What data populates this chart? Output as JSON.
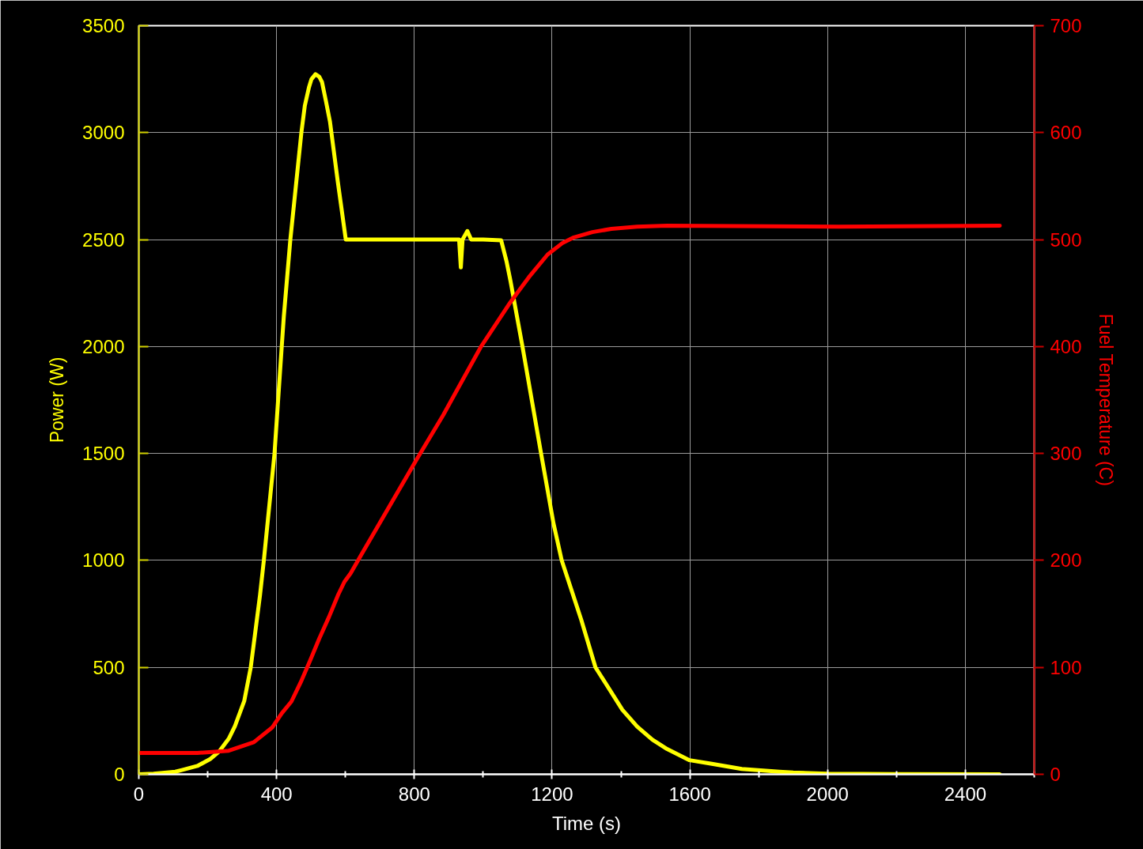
{
  "chart_data": {
    "type": "line",
    "xlabel": "Time (s)",
    "ylabel": "Power (W)",
    "y2label": "Fuel Temperature (C)",
    "xlim": [
      0,
      2600
    ],
    "xticks": [
      0,
      {
        "value": 200,
        "label": null
      },
      400,
      {
        "value": 600,
        "label": null
      },
      800,
      {
        "value": 1000,
        "label": null
      },
      1200,
      {
        "value": 1400,
        "label": null
      },
      1600,
      {
        "value": 1800,
        "label": null
      },
      2000,
      {
        "value": 2200,
        "label": null
      },
      2400,
      {
        "value": 2600,
        "label": null
      }
    ],
    "ylim": [
      0,
      3500
    ],
    "yticks": [
      0,
      500,
      1000,
      1500,
      2000,
      2500,
      3000,
      3500
    ],
    "y2lim": [
      0,
      700
    ],
    "y2ticks": [
      0,
      100,
      200,
      300,
      400,
      500,
      600,
      700
    ],
    "grid": true,
    "series": [
      {
        "color": "#ffff00",
        "x": [
          0,
          43,
          106,
          125,
          170,
          207,
          234,
          261,
          279,
          306,
          325,
          338,
          352,
          363,
          394,
          415,
          421,
          440,
          472,
          482,
          494,
          501,
          513,
          524,
          532,
          543,
          555,
          578,
          601,
          700,
          800,
          900,
          930,
          935,
          940,
          954,
          965,
          1000,
          1052,
          1068,
          1079,
          1114,
          1168,
          1204,
          1228,
          1285,
          1326,
          1404,
          1447,
          1491,
          1534,
          1599,
          1664,
          1751,
          1860,
          1900,
          2000,
          2200,
          2500
        ],
        "values": [
          0,
          3,
          12,
          20,
          39,
          71,
          108,
          166,
          225,
          342,
          500,
          663,
          839,
          1000,
          1500,
          2000,
          2140,
          2500,
          3000,
          3126,
          3212,
          3249,
          3273,
          3261,
          3236,
          3150,
          3052,
          2768,
          2500,
          2500,
          2500,
          2500,
          2500,
          2370,
          2500,
          2540,
          2500,
          2500,
          2497,
          2396,
          2308,
          2000,
          1500,
          1174,
          1000,
          721,
          500,
          302,
          223,
          162,
          118,
          66,
          49,
          25,
          12,
          8,
          3,
          1,
          0
        ]
      },
      {
        "color": "#ff0000",
        "axis": "y2",
        "x": [
          0,
          170,
          261,
          334,
          388,
          415,
          443,
          470,
          497,
          524,
          552,
          579,
          597,
          615,
          642,
          806,
          884,
          992,
          1078,
          1101,
          1133,
          1187,
          1231,
          1263,
          1317,
          1372,
          1447,
          1534,
          2032,
          2500
        ],
        "values": [
          20,
          20,
          22,
          30,
          44,
          57,
          68,
          86,
          106,
          127,
          147,
          168,
          180,
          188,
          203,
          294,
          336,
          399,
          441,
          451,
          465,
          486,
          497,
          502,
          507,
          510,
          512,
          513,
          512,
          513
        ]
      }
    ]
  }
}
